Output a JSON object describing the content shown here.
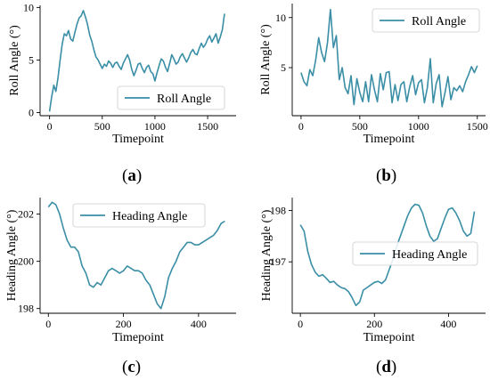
{
  "colors": {
    "series": "#3a8ea6",
    "axis": "#000000",
    "legend_border": "#cccccc"
  },
  "panel_labels": [
    {
      "open": "(",
      "letter": "a",
      "close": ")"
    },
    {
      "open": "(",
      "letter": "b",
      "close": ")"
    },
    {
      "open": "(",
      "letter": "c",
      "close": ")"
    },
    {
      "open": "(",
      "letter": "d",
      "close": ")"
    }
  ],
  "chart_data": [
    {
      "type": "line",
      "xlabel": "Timepoint",
      "ylabel": "Roll Angle (°)",
      "xlim": [
        -90,
        1770
      ],
      "ylim": [
        -0.3,
        10.2
      ],
      "xticks": [
        0,
        500,
        1000,
        1500
      ],
      "yticks": [
        0,
        5,
        10
      ],
      "legend": "bottom-right",
      "series": [
        {
          "name": "Roll Angle",
          "x": [
            0,
            20,
            40,
            60,
            80,
            100,
            120,
            140,
            160,
            180,
            200,
            220,
            240,
            260,
            280,
            300,
            320,
            340,
            360,
            380,
            400,
            420,
            440,
            460,
            480,
            500,
            520,
            540,
            560,
            580,
            600,
            620,
            640,
            660,
            680,
            700,
            720,
            740,
            760,
            780,
            800,
            820,
            840,
            860,
            880,
            900,
            920,
            940,
            960,
            980,
            1000,
            1020,
            1040,
            1060,
            1080,
            1100,
            1120,
            1140,
            1160,
            1180,
            1200,
            1220,
            1240,
            1260,
            1280,
            1300,
            1320,
            1340,
            1360,
            1380,
            1400,
            1420,
            1440,
            1460,
            1480,
            1500,
            1520,
            1540,
            1560,
            1580,
            1600,
            1620,
            1640,
            1660
          ],
          "y": [
            0.1,
            1.5,
            2.6,
            2.0,
            3.3,
            5.0,
            6.5,
            7.5,
            7.3,
            7.8,
            7.0,
            6.8,
            7.6,
            8.4,
            9.0,
            9.2,
            9.7,
            9.1,
            8.4,
            7.4,
            6.8,
            6.0,
            5.3,
            5.0,
            4.6,
            4.2,
            4.6,
            4.4,
            4.9,
            4.7,
            4.3,
            4.7,
            4.8,
            4.4,
            4.1,
            4.7,
            5.1,
            5.5,
            5.0,
            4.1,
            3.5,
            4.0,
            4.6,
            4.7,
            4.2,
            3.8,
            4.3,
            4.5,
            3.9,
            3.7,
            3.0,
            3.8,
            4.5,
            5.1,
            4.9,
            4.3,
            3.9,
            4.7,
            5.5,
            5.1,
            4.6,
            4.8,
            5.3,
            5.6,
            5.2,
            4.8,
            5.2,
            5.7,
            6.0,
            5.6,
            5.5,
            6.1,
            6.6,
            6.2,
            6.5,
            7.0,
            7.3,
            6.7,
            7.1,
            7.5,
            6.6,
            7.2,
            7.9,
            9.4
          ]
        }
      ]
    },
    {
      "type": "line",
      "xlabel": "Timepoint",
      "ylabel": "Roll Angle (°)",
      "xlim": [
        -75,
        1570
      ],
      "ylim": [
        0.2,
        11.4
      ],
      "xticks": [
        0,
        500,
        1000,
        1500
      ],
      "yticks": [
        5,
        10
      ],
      "legend": "top-right",
      "series": [
        {
          "name": "Roll Angle",
          "x": [
            0,
            25,
            50,
            75,
            100,
            125,
            150,
            175,
            200,
            225,
            250,
            275,
            300,
            325,
            350,
            375,
            400,
            425,
            450,
            475,
            500,
            525,
            550,
            575,
            600,
            625,
            650,
            675,
            700,
            725,
            750,
            775,
            800,
            825,
            850,
            875,
            900,
            925,
            950,
            975,
            1000,
            1025,
            1050,
            1075,
            1100,
            1125,
            1150,
            1175,
            1200,
            1225,
            1250,
            1275,
            1300,
            1325,
            1350,
            1375,
            1400,
            1425,
            1450,
            1475,
            1500
          ],
          "y": [
            4.5,
            3.6,
            3.2,
            4.8,
            4.2,
            5.8,
            8.0,
            6.5,
            5.6,
            7.5,
            10.8,
            7.0,
            8.2,
            3.8,
            5.0,
            3.0,
            2.4,
            4.2,
            1.3,
            3.9,
            2.5,
            1.6,
            3.6,
            1.6,
            4.3,
            2.8,
            1.6,
            4.4,
            2.8,
            4.5,
            4.6,
            1.5,
            3.3,
            1.7,
            3.3,
            3.6,
            1.6,
            3.1,
            4.2,
            2.3,
            3.5,
            3.8,
            1.5,
            3.0,
            5.9,
            1.5,
            3.4,
            4.3,
            1.1,
            2.5,
            4.1,
            1.8,
            3.0,
            2.7,
            3.2,
            2.6,
            3.6,
            4.3,
            5.1,
            4.5,
            5.2
          ]
        }
      ]
    },
    {
      "type": "line",
      "xlabel": "Timepoint",
      "ylabel": "Heading Angle (°)",
      "xlim": [
        -22,
        500
      ],
      "ylim": [
        197.8,
        202.7
      ],
      "xticks": [
        0,
        200,
        400
      ],
      "yticks": [
        198,
        200,
        202
      ],
      "legend": "top-center",
      "series": [
        {
          "name": "Heading Angle",
          "x": [
            0,
            10,
            20,
            30,
            40,
            50,
            60,
            70,
            80,
            90,
            100,
            110,
            120,
            130,
            140,
            150,
            160,
            170,
            180,
            190,
            200,
            210,
            220,
            230,
            240,
            250,
            260,
            270,
            280,
            290,
            300,
            310,
            320,
            330,
            340,
            350,
            360,
            370,
            380,
            390,
            400,
            410,
            420,
            430,
            440,
            450,
            460,
            470
          ],
          "y": [
            202.3,
            202.5,
            202.4,
            202.0,
            201.4,
            200.9,
            200.6,
            200.6,
            200.4,
            199.8,
            199.5,
            199.0,
            198.9,
            199.1,
            199.0,
            199.3,
            199.6,
            199.7,
            199.6,
            199.5,
            199.6,
            199.8,
            199.7,
            199.6,
            199.6,
            199.5,
            199.2,
            199.0,
            198.6,
            198.2,
            198.0,
            198.5,
            199.3,
            199.7,
            200.0,
            200.4,
            200.6,
            200.8,
            200.8,
            200.7,
            200.7,
            200.8,
            200.9,
            201.0,
            201.1,
            201.3,
            201.6,
            201.7
          ]
        }
      ]
    },
    {
      "type": "line",
      "xlabel": "Timepoint",
      "ylabel": "Heading Angle (°)",
      "xlim": [
        -22,
        500
      ],
      "ylim": [
        196.0,
        198.25
      ],
      "xticks": [
        0,
        200,
        400
      ],
      "yticks": [
        197,
        198
      ],
      "legend": "center-right",
      "series": [
        {
          "name": "Heading Angle",
          "x": [
            0,
            10,
            20,
            30,
            40,
            50,
            60,
            70,
            80,
            90,
            100,
            110,
            120,
            130,
            140,
            150,
            160,
            170,
            180,
            190,
            200,
            210,
            220,
            230,
            240,
            250,
            260,
            270,
            280,
            290,
            300,
            310,
            320,
            330,
            340,
            350,
            360,
            370,
            380,
            390,
            400,
            410,
            420,
            430,
            440,
            450,
            460,
            470
          ],
          "y": [
            197.72,
            197.6,
            197.2,
            196.95,
            196.8,
            196.72,
            196.75,
            196.68,
            196.6,
            196.62,
            196.55,
            196.5,
            196.48,
            196.42,
            196.3,
            196.15,
            196.22,
            196.45,
            196.5,
            196.55,
            196.6,
            196.62,
            196.58,
            196.65,
            196.85,
            197.05,
            197.3,
            197.5,
            197.7,
            197.9,
            198.05,
            198.12,
            198.1,
            197.95,
            197.7,
            197.5,
            197.4,
            197.45,
            197.65,
            197.85,
            198.02,
            198.05,
            197.95,
            197.8,
            197.6,
            197.5,
            197.55,
            197.98
          ]
        }
      ]
    }
  ]
}
